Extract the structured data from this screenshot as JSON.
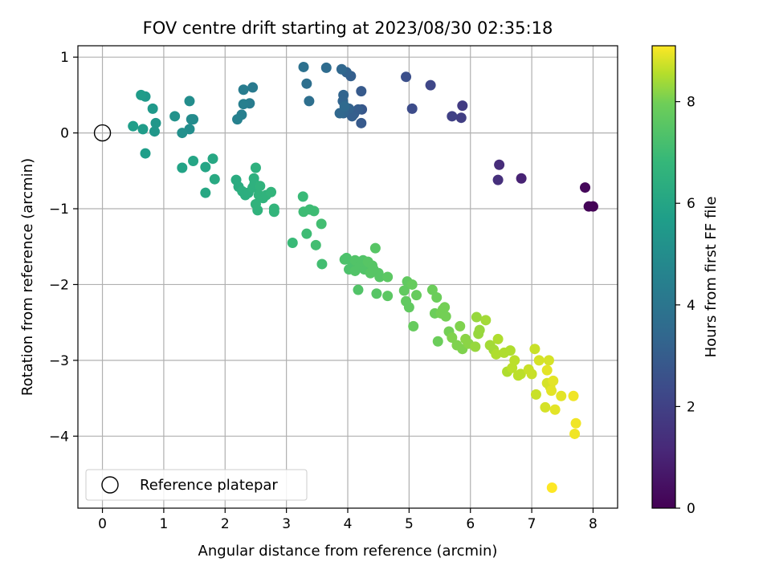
{
  "chart_data": {
    "type": "scatter",
    "title": "FOV centre drift starting at 2023/08/30 02:35:18",
    "xlabel": "Angular distance from reference (arcmin)",
    "ylabel": "Rotation from reference (arcmin)",
    "xlim": [
      -0.4,
      8.4
    ],
    "ylim": [
      -4.95,
      1.15
    ],
    "xticks": [
      0,
      1,
      2,
      3,
      4,
      5,
      6,
      7,
      8
    ],
    "yticks": [
      -4,
      -3,
      -2,
      -1,
      0,
      1
    ],
    "grid": true,
    "legend": {
      "location": "lower-left",
      "entries": [
        "Reference platepar"
      ]
    },
    "reference_point": {
      "x": 0,
      "y": 0,
      "label": "Reference platepar"
    },
    "colorbar": {
      "label": "Hours from first FF file",
      "range": [
        0,
        9.1
      ],
      "ticks": [
        0,
        2,
        4,
        6,
        8
      ],
      "colormap": "viridis"
    },
    "points": [
      [
        8.0,
        -0.97,
        0.05
      ],
      [
        7.93,
        -0.97,
        0.1
      ],
      [
        7.87,
        -0.72,
        0.2
      ],
      [
        6.83,
        -0.6,
        1.0
      ],
      [
        6.47,
        -0.42,
        1.3
      ],
      [
        6.45,
        -0.62,
        1.4
      ],
      [
        5.87,
        0.36,
        1.8
      ],
      [
        5.85,
        0.2,
        1.9
      ],
      [
        5.7,
        0.22,
        2.0
      ],
      [
        5.35,
        0.63,
        2.2
      ],
      [
        5.05,
        0.32,
        2.4
      ],
      [
        4.95,
        0.74,
        2.5
      ],
      [
        4.23,
        0.31,
        2.8
      ],
      [
        4.22,
        0.13,
        2.9
      ],
      [
        4.22,
        0.55,
        2.9
      ],
      [
        4.17,
        0.31,
        3.0
      ],
      [
        4.1,
        0.25,
        3.0
      ],
      [
        4.07,
        0.22,
        3.1
      ],
      [
        4.05,
        0.75,
        3.1
      ],
      [
        4.02,
        0.32,
        3.2
      ],
      [
        3.98,
        0.8,
        3.2
      ],
      [
        3.93,
        0.26,
        3.3
      ],
      [
        3.93,
        0.5,
        3.3
      ],
      [
        3.92,
        0.42,
        3.3
      ],
      [
        3.9,
        0.84,
        3.4
      ],
      [
        3.87,
        0.26,
        3.4
      ],
      [
        3.95,
        0.35,
        3.5
      ],
      [
        3.65,
        0.86,
        3.6
      ],
      [
        3.37,
        0.42,
        3.7
      ],
      [
        3.33,
        0.65,
        3.7
      ],
      [
        3.28,
        0.87,
        3.8
      ],
      [
        2.45,
        0.6,
        4.2
      ],
      [
        2.4,
        0.39,
        4.3
      ],
      [
        2.3,
        0.57,
        4.3
      ],
      [
        2.3,
        0.38,
        4.4
      ],
      [
        2.27,
        0.24,
        4.4
      ],
      [
        2.2,
        0.18,
        4.5
      ],
      [
        1.48,
        0.18,
        4.9
      ],
      [
        1.45,
        0.18,
        4.9
      ],
      [
        1.42,
        0.42,
        5.0
      ],
      [
        1.42,
        0.05,
        5.0
      ],
      [
        1.3,
        0.0,
        5.1
      ],
      [
        1.18,
        0.22,
        5.2
      ],
      [
        0.87,
        0.13,
        5.4
      ],
      [
        0.85,
        0.02,
        5.4
      ],
      [
        0.82,
        0.32,
        5.5
      ],
      [
        0.7,
        0.48,
        5.5
      ],
      [
        0.66,
        0.05,
        5.6
      ],
      [
        0.63,
        0.5,
        5.6
      ],
      [
        0.7,
        -0.27,
        5.7
      ],
      [
        0.5,
        0.09,
        5.7
      ],
      [
        1.3,
        -0.46,
        5.9
      ],
      [
        1.48,
        -0.37,
        6.0
      ],
      [
        1.68,
        -0.45,
        6.0
      ],
      [
        1.68,
        -0.79,
        6.1
      ],
      [
        1.8,
        -0.34,
        6.1
      ],
      [
        1.83,
        -0.61,
        6.2
      ],
      [
        2.18,
        -0.62,
        6.3
      ],
      [
        2.22,
        -0.71,
        6.3
      ],
      [
        2.28,
        -0.77,
        6.4
      ],
      [
        2.33,
        -0.82,
        6.4
      ],
      [
        2.38,
        -0.79,
        6.4
      ],
      [
        2.45,
        -0.72,
        6.5
      ],
      [
        2.47,
        -0.6,
        6.5
      ],
      [
        2.48,
        -0.67,
        6.5
      ],
      [
        2.5,
        -0.46,
        6.5
      ],
      [
        2.5,
        -0.94,
        6.6
      ],
      [
        2.53,
        -1.02,
        6.6
      ],
      [
        2.55,
        -0.82,
        6.6
      ],
      [
        2.57,
        -0.7,
        6.6
      ],
      [
        2.62,
        -0.86,
        6.6
      ],
      [
        2.67,
        -0.82,
        6.6
      ],
      [
        2.75,
        -0.78,
        6.7
      ],
      [
        2.8,
        -1.0,
        6.7
      ],
      [
        2.8,
        -1.04,
        6.7
      ],
      [
        3.1,
        -1.45,
        6.9
      ],
      [
        3.27,
        -0.84,
        6.9
      ],
      [
        3.28,
        -1.04,
        7.0
      ],
      [
        3.33,
        -1.33,
        7.0
      ],
      [
        3.38,
        -1.01,
        7.0
      ],
      [
        3.45,
        -1.03,
        7.0
      ],
      [
        3.48,
        -1.48,
        7.1
      ],
      [
        3.57,
        -1.2,
        7.1
      ],
      [
        3.58,
        -1.73,
        7.1
      ],
      [
        3.95,
        -1.67,
        7.3
      ],
      [
        3.98,
        -1.65,
        7.3
      ],
      [
        4.02,
        -1.8,
        7.3
      ],
      [
        4.07,
        -1.7,
        7.3
      ],
      [
        4.1,
        -1.72,
        7.3
      ],
      [
        4.12,
        -1.68,
        7.4
      ],
      [
        4.12,
        -1.82,
        7.4
      ],
      [
        4.17,
        -2.07,
        7.4
      ],
      [
        4.2,
        -1.75,
        7.4
      ],
      [
        4.25,
        -1.68,
        7.4
      ],
      [
        4.27,
        -1.8,
        7.4
      ],
      [
        4.3,
        -1.72,
        7.4
      ],
      [
        4.33,
        -1.7,
        7.5
      ],
      [
        4.37,
        -1.85,
        7.5
      ],
      [
        4.4,
        -1.75,
        7.5
      ],
      [
        4.42,
        -1.8,
        7.5
      ],
      [
        4.45,
        -1.52,
        7.5
      ],
      [
        4.47,
        -2.12,
        7.5
      ],
      [
        4.5,
        -1.85,
        7.5
      ],
      [
        4.52,
        -1.9,
        7.5
      ],
      [
        4.65,
        -1.9,
        7.6
      ],
      [
        4.65,
        -2.15,
        7.6
      ],
      [
        4.92,
        -2.08,
        7.7
      ],
      [
        4.95,
        -2.22,
        7.7
      ],
      [
        4.97,
        -1.96,
        7.7
      ],
      [
        5.0,
        -2.3,
        7.7
      ],
      [
        5.05,
        -2.0,
        7.8
      ],
      [
        5.07,
        -2.55,
        7.8
      ],
      [
        5.12,
        -2.14,
        7.8
      ],
      [
        5.38,
        -2.07,
        7.9
      ],
      [
        5.42,
        -2.38,
        7.9
      ],
      [
        5.45,
        -2.17,
        7.9
      ],
      [
        5.47,
        -2.75,
        7.9
      ],
      [
        5.52,
        -2.38,
        8.0
      ],
      [
        5.55,
        -2.33,
        8.0
      ],
      [
        5.58,
        -2.3,
        8.0
      ],
      [
        5.6,
        -2.42,
        8.0
      ],
      [
        5.65,
        -2.62,
        8.0
      ],
      [
        5.7,
        -2.7,
        8.1
      ],
      [
        5.78,
        -2.8,
        8.1
      ],
      [
        5.83,
        -2.55,
        8.1
      ],
      [
        5.87,
        -2.85,
        8.1
      ],
      [
        5.92,
        -2.72,
        8.2
      ],
      [
        5.97,
        -2.78,
        8.2
      ],
      [
        6.08,
        -2.82,
        8.3
      ],
      [
        6.1,
        -2.43,
        8.3
      ],
      [
        6.13,
        -2.65,
        8.3
      ],
      [
        6.15,
        -2.6,
        8.3
      ],
      [
        6.25,
        -2.47,
        8.4
      ],
      [
        6.32,
        -2.8,
        8.4
      ],
      [
        6.38,
        -2.86,
        8.4
      ],
      [
        6.42,
        -2.92,
        8.5
      ],
      [
        6.45,
        -2.72,
        8.5
      ],
      [
        6.55,
        -2.9,
        8.5
      ],
      [
        6.6,
        -3.15,
        8.5
      ],
      [
        6.65,
        -2.87,
        8.5
      ],
      [
        6.68,
        -3.1,
        8.6
      ],
      [
        6.72,
        -3.0,
        8.6
      ],
      [
        6.78,
        -3.2,
        8.6
      ],
      [
        6.82,
        -3.18,
        8.6
      ],
      [
        6.95,
        -3.12,
        8.7
      ],
      [
        7.0,
        -3.18,
        8.7
      ],
      [
        7.05,
        -2.85,
        8.7
      ],
      [
        7.07,
        -3.45,
        8.7
      ],
      [
        7.12,
        -3.0,
        8.8
      ],
      [
        7.22,
        -3.62,
        8.8
      ],
      [
        7.25,
        -3.3,
        8.8
      ],
      [
        7.28,
        -3.0,
        8.8
      ],
      [
        7.3,
        -3.35,
        8.8
      ],
      [
        7.32,
        -3.4,
        8.9
      ],
      [
        7.35,
        -3.27,
        8.9
      ],
      [
        7.38,
        -3.65,
        8.9
      ],
      [
        7.25,
        -3.13,
        8.9
      ],
      [
        7.48,
        -3.47,
        8.9
      ],
      [
        7.68,
        -3.47,
        9.0
      ],
      [
        7.72,
        -3.83,
        9.0
      ],
      [
        7.7,
        -3.97,
        9.0
      ],
      [
        7.33,
        -4.68,
        9.1
      ]
    ]
  }
}
